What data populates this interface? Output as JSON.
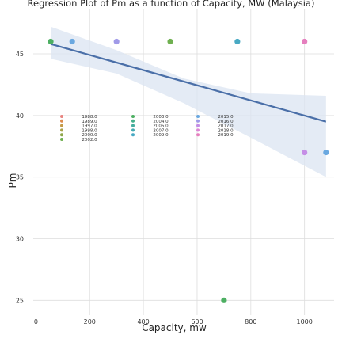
{
  "chart_data": {
    "type": "scatter",
    "title": "Regression Plot of Pm as a function of Capacity, MW (Malaysia)",
    "xlabel": "Capacity, mw",
    "ylabel": "Pm",
    "xlim": [
      -10,
      1110
    ],
    "ylim": [
      23.8,
      48.6
    ],
    "xticks": [
      "0",
      "200",
      "400",
      "600",
      "800",
      "1000"
    ],
    "yticks": [
      "25",
      "30",
      "35",
      "40",
      "45"
    ],
    "xtick_values": [
      0,
      200,
      400,
      600,
      800,
      1000
    ],
    "ytick_values": [
      25,
      30,
      35,
      40,
      45
    ],
    "grid": true,
    "legend_placement": "center-left",
    "series": [
      {
        "name": "1988.0",
        "color": "#e8837f",
        "points": []
      },
      {
        "name": "1989.0",
        "color": "#dd8b4e",
        "points": []
      },
      {
        "name": "1997.0",
        "color": "#c49a46",
        "points": []
      },
      {
        "name": "1998.0",
        "color": "#a9a24a",
        "points": []
      },
      {
        "name": "2000.0",
        "color": "#8ea64a",
        "points": []
      },
      {
        "name": "2002.0",
        "color": "#6fb050",
        "points": [
          [
            500,
            46
          ]
        ]
      },
      {
        "name": "2003.0",
        "color": "#4daf62",
        "points": [
          [
            55,
            46
          ],
          [
            700,
            25
          ]
        ]
      },
      {
        "name": "2004.0",
        "color": "#44af8a",
        "points": []
      },
      {
        "name": "2006.0",
        "color": "#44ad9e",
        "points": []
      },
      {
        "name": "2007.0",
        "color": "#45aab1",
        "points": []
      },
      {
        "name": "2009.0",
        "color": "#48a9c3",
        "points": [
          [
            750,
            46
          ]
        ]
      },
      {
        "name": "2015.0",
        "color": "#6aa8e0",
        "points": [
          [
            135,
            46
          ],
          [
            1080,
            37
          ]
        ]
      },
      {
        "name": "2016.0",
        "color": "#a09ae8",
        "points": [
          [
            300,
            46
          ]
        ]
      },
      {
        "name": "2017.0",
        "color": "#c58ee6",
        "points": [
          [
            1000,
            37
          ]
        ]
      },
      {
        "name": "2018.0",
        "color": "#dd86d6",
        "points": []
      },
      {
        "name": "2019.0",
        "color": "#e57fbe",
        "points": [
          [
            1000,
            46
          ]
        ]
      }
    ],
    "regression": {
      "color": "#4a6fa8",
      "band_color": "#dbe4f1",
      "line": [
        [
          55,
          45.8
        ],
        [
          1080,
          39.5
        ]
      ],
      "band_upper": [
        [
          55,
          47.2
        ],
        [
          300,
          45.3
        ],
        [
          550,
          43.0
        ],
        [
          800,
          41.8
        ],
        [
          1080,
          41.6
        ]
      ],
      "band_lower": [
        [
          55,
          44.6
        ],
        [
          300,
          43.4
        ],
        [
          550,
          41.0
        ],
        [
          800,
          38.2
        ],
        [
          1080,
          35.0
        ]
      ]
    }
  }
}
